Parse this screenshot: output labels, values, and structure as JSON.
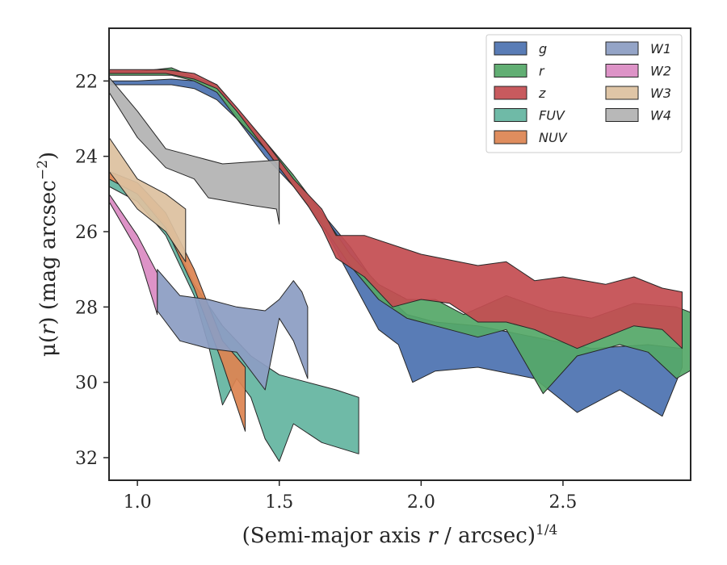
{
  "chart_data": {
    "type": "area",
    "xlabel_parts": {
      "prefix": "(Semi-major axis ",
      "var": "r",
      "suffix": " / arcsec)",
      "sup": "1/4"
    },
    "ylabel_parts": {
      "prefix": "μ(",
      "var": "r",
      "suffix": ") (mag arcsec",
      "sup": "−2",
      "close": ")"
    },
    "xlim": [
      0.9,
      2.95
    ],
    "ylim": [
      32.6,
      20.6
    ],
    "y_inverted": true,
    "x_ticks": [
      1.0,
      1.5,
      2.0,
      2.5
    ],
    "x_tick_labels": [
      "1.0",
      "1.5",
      "2.0",
      "2.5"
    ],
    "y_ticks": [
      22,
      24,
      26,
      28,
      30,
      32
    ],
    "y_tick_labels": [
      "22",
      "24",
      "26",
      "28",
      "30",
      "32"
    ],
    "grid": false,
    "legend": {
      "placement": "top-right",
      "columns": 2
    },
    "series": [
      {
        "name": "g",
        "color": "#4c72b0",
        "upper": [
          [
            0.9,
            22.0
          ],
          [
            1.0,
            22.0
          ],
          [
            1.12,
            21.95
          ],
          [
            1.2,
            22.0
          ],
          [
            1.28,
            22.3
          ],
          [
            1.35,
            22.9
          ],
          [
            1.45,
            23.8
          ],
          [
            1.55,
            24.6
          ],
          [
            1.65,
            25.5
          ],
          [
            1.75,
            26.4
          ],
          [
            1.85,
            27.5
          ],
          [
            1.95,
            28.2
          ],
          [
            2.05,
            28.4
          ],
          [
            2.2,
            28.5
          ],
          [
            2.4,
            28.8
          ],
          [
            2.6,
            29.1
          ],
          [
            2.8,
            29.0
          ],
          [
            2.92,
            29.1
          ]
        ],
        "lower": [
          [
            0.9,
            22.1
          ],
          [
            1.0,
            22.1
          ],
          [
            1.12,
            22.1
          ],
          [
            1.2,
            22.2
          ],
          [
            1.28,
            22.5
          ],
          [
            1.35,
            23.0
          ],
          [
            1.45,
            24.0
          ],
          [
            1.55,
            24.8
          ],
          [
            1.65,
            25.8
          ],
          [
            1.75,
            27.2
          ],
          [
            1.85,
            28.6
          ],
          [
            1.92,
            29.0
          ],
          [
            1.97,
            30.0
          ],
          [
            2.05,
            29.7
          ],
          [
            2.2,
            29.6
          ],
          [
            2.4,
            29.9
          ],
          [
            2.55,
            30.8
          ],
          [
            2.7,
            30.2
          ],
          [
            2.85,
            30.9
          ],
          [
            2.92,
            29.6
          ]
        ]
      },
      {
        "name": "r",
        "color": "#55a868",
        "upper": [
          [
            0.9,
            21.75
          ],
          [
            1.0,
            21.75
          ],
          [
            1.12,
            21.65
          ],
          [
            1.2,
            21.9
          ],
          [
            1.28,
            22.1
          ],
          [
            1.35,
            22.8
          ],
          [
            1.45,
            23.6
          ],
          [
            1.55,
            24.5
          ],
          [
            1.65,
            25.5
          ],
          [
            1.75,
            26.6
          ],
          [
            1.85,
            27.4
          ],
          [
            1.95,
            27.8
          ],
          [
            2.05,
            27.8
          ],
          [
            2.15,
            28.2
          ],
          [
            2.3,
            27.7
          ],
          [
            2.45,
            28.1
          ],
          [
            2.6,
            28.3
          ],
          [
            2.75,
            27.9
          ],
          [
            2.9,
            28.0
          ],
          [
            2.97,
            28.2
          ]
        ],
        "lower": [
          [
            0.9,
            21.85
          ],
          [
            1.0,
            21.85
          ],
          [
            1.12,
            21.85
          ],
          [
            1.2,
            22.0
          ],
          [
            1.28,
            22.3
          ],
          [
            1.35,
            23.0
          ],
          [
            1.45,
            23.8
          ],
          [
            1.55,
            24.8
          ],
          [
            1.65,
            25.8
          ],
          [
            1.75,
            26.9
          ],
          [
            1.85,
            27.8
          ],
          [
            1.95,
            28.3
          ],
          [
            2.05,
            28.5
          ],
          [
            2.2,
            28.8
          ],
          [
            2.3,
            28.6
          ],
          [
            2.43,
            30.3
          ],
          [
            2.55,
            29.3
          ],
          [
            2.7,
            29.0
          ],
          [
            2.8,
            29.2
          ],
          [
            2.9,
            29.9
          ],
          [
            2.97,
            29.6
          ]
        ]
      },
      {
        "name": "z",
        "color": "#c44e52",
        "upper": [
          [
            0.9,
            21.7
          ],
          [
            1.0,
            21.7
          ],
          [
            1.1,
            21.7
          ],
          [
            1.2,
            21.8
          ],
          [
            1.28,
            22.1
          ],
          [
            1.35,
            22.7
          ],
          [
            1.45,
            23.6
          ],
          [
            1.5,
            24.1
          ],
          [
            1.55,
            24.6
          ],
          [
            1.6,
            25.0
          ],
          [
            1.65,
            25.4
          ],
          [
            1.7,
            26.1
          ],
          [
            1.8,
            26.1
          ],
          [
            2.0,
            26.6
          ],
          [
            2.2,
            26.9
          ],
          [
            2.3,
            26.8
          ],
          [
            2.4,
            27.3
          ],
          [
            2.5,
            27.2
          ],
          [
            2.65,
            27.4
          ],
          [
            2.75,
            27.2
          ],
          [
            2.85,
            27.5
          ],
          [
            2.92,
            27.6
          ]
        ],
        "lower": [
          [
            0.9,
            21.8
          ],
          [
            1.0,
            21.8
          ],
          [
            1.1,
            21.8
          ],
          [
            1.2,
            21.95
          ],
          [
            1.28,
            22.2
          ],
          [
            1.35,
            22.8
          ],
          [
            1.45,
            23.8
          ],
          [
            1.5,
            24.3
          ],
          [
            1.55,
            24.8
          ],
          [
            1.6,
            25.3
          ],
          [
            1.65,
            25.9
          ],
          [
            1.7,
            26.7
          ],
          [
            1.8,
            27.2
          ],
          [
            1.9,
            28.0
          ],
          [
            2.0,
            27.8
          ],
          [
            2.1,
            27.9
          ],
          [
            2.2,
            28.4
          ],
          [
            2.3,
            28.4
          ],
          [
            2.4,
            28.6
          ],
          [
            2.55,
            29.1
          ],
          [
            2.65,
            28.8
          ],
          [
            2.75,
            28.5
          ],
          [
            2.85,
            28.6
          ],
          [
            2.92,
            29.1
          ]
        ]
      },
      {
        "name": "FUV",
        "color": "#64b5a0",
        "upper": [
          [
            0.9,
            24.6
          ],
          [
            1.0,
            25.0
          ],
          [
            1.1,
            25.8
          ],
          [
            1.2,
            27.4
          ],
          [
            1.3,
            28.5
          ],
          [
            1.4,
            29.3
          ],
          [
            1.5,
            29.8
          ],
          [
            1.6,
            30.0
          ],
          [
            1.7,
            30.2
          ],
          [
            1.78,
            30.4
          ]
        ],
        "lower": [
          [
            0.9,
            24.8
          ],
          [
            1.0,
            25.2
          ],
          [
            1.1,
            26.1
          ],
          [
            1.2,
            27.7
          ],
          [
            1.25,
            29.0
          ],
          [
            1.3,
            30.6
          ],
          [
            1.35,
            29.9
          ],
          [
            1.4,
            30.4
          ],
          [
            1.45,
            31.5
          ],
          [
            1.5,
            32.1
          ],
          [
            1.55,
            31.1
          ],
          [
            1.65,
            31.6
          ],
          [
            1.78,
            31.9
          ]
        ]
      },
      {
        "name": "NUV",
        "color": "#dd8452",
        "upper": [
          [
            0.9,
            24.4
          ],
          [
            1.0,
            24.7
          ],
          [
            1.1,
            25.5
          ],
          [
            1.2,
            27.0
          ],
          [
            1.3,
            28.9
          ],
          [
            1.38,
            29.6
          ]
        ],
        "lower": [
          [
            0.9,
            24.6
          ],
          [
            1.0,
            25.0
          ],
          [
            1.1,
            25.9
          ],
          [
            1.2,
            27.5
          ],
          [
            1.3,
            29.5
          ],
          [
            1.38,
            31.3
          ]
        ]
      },
      {
        "name": "W1",
        "color": "#8c9dc3",
        "upper": [
          [
            1.07,
            27.0
          ],
          [
            1.15,
            27.7
          ],
          [
            1.25,
            27.8
          ],
          [
            1.35,
            28.0
          ],
          [
            1.45,
            28.1
          ],
          [
            1.5,
            27.8
          ],
          [
            1.55,
            27.3
          ],
          [
            1.58,
            27.6
          ],
          [
            1.6,
            28.0
          ]
        ],
        "lower": [
          [
            1.07,
            28.1
          ],
          [
            1.15,
            28.9
          ],
          [
            1.25,
            29.1
          ],
          [
            1.35,
            29.2
          ],
          [
            1.45,
            30.2
          ],
          [
            1.5,
            28.3
          ],
          [
            1.55,
            28.9
          ],
          [
            1.6,
            29.9
          ]
        ]
      },
      {
        "name": "W2",
        "color": "#da8bc3",
        "upper": [
          [
            0.9,
            25.0
          ],
          [
            1.0,
            26.1
          ],
          [
            1.07,
            27.1
          ]
        ],
        "lower": [
          [
            0.9,
            25.2
          ],
          [
            1.0,
            26.5
          ],
          [
            1.07,
            28.2
          ]
        ]
      },
      {
        "name": "W3",
        "color": "#ddc19f",
        "upper": [
          [
            0.9,
            23.5
          ],
          [
            1.0,
            24.6
          ],
          [
            1.1,
            25.0
          ],
          [
            1.17,
            25.4
          ]
        ],
        "lower": [
          [
            0.9,
            24.4
          ],
          [
            1.0,
            25.4
          ],
          [
            1.1,
            26.0
          ],
          [
            1.17,
            26.8
          ]
        ]
      },
      {
        "name": "W4",
        "color": "#b3b3b3",
        "upper": [
          [
            0.9,
            21.9
          ],
          [
            1.0,
            22.8
          ],
          [
            1.1,
            23.8
          ],
          [
            1.2,
            24.0
          ],
          [
            1.3,
            24.2
          ],
          [
            1.5,
            24.1
          ]
        ],
        "lower": [
          [
            0.9,
            22.3
          ],
          [
            1.0,
            23.5
          ],
          [
            1.1,
            24.3
          ],
          [
            1.2,
            24.6
          ],
          [
            1.25,
            25.1
          ],
          [
            1.4,
            25.3
          ],
          [
            1.49,
            25.4
          ],
          [
            1.5,
            25.8
          ]
        ]
      }
    ]
  }
}
